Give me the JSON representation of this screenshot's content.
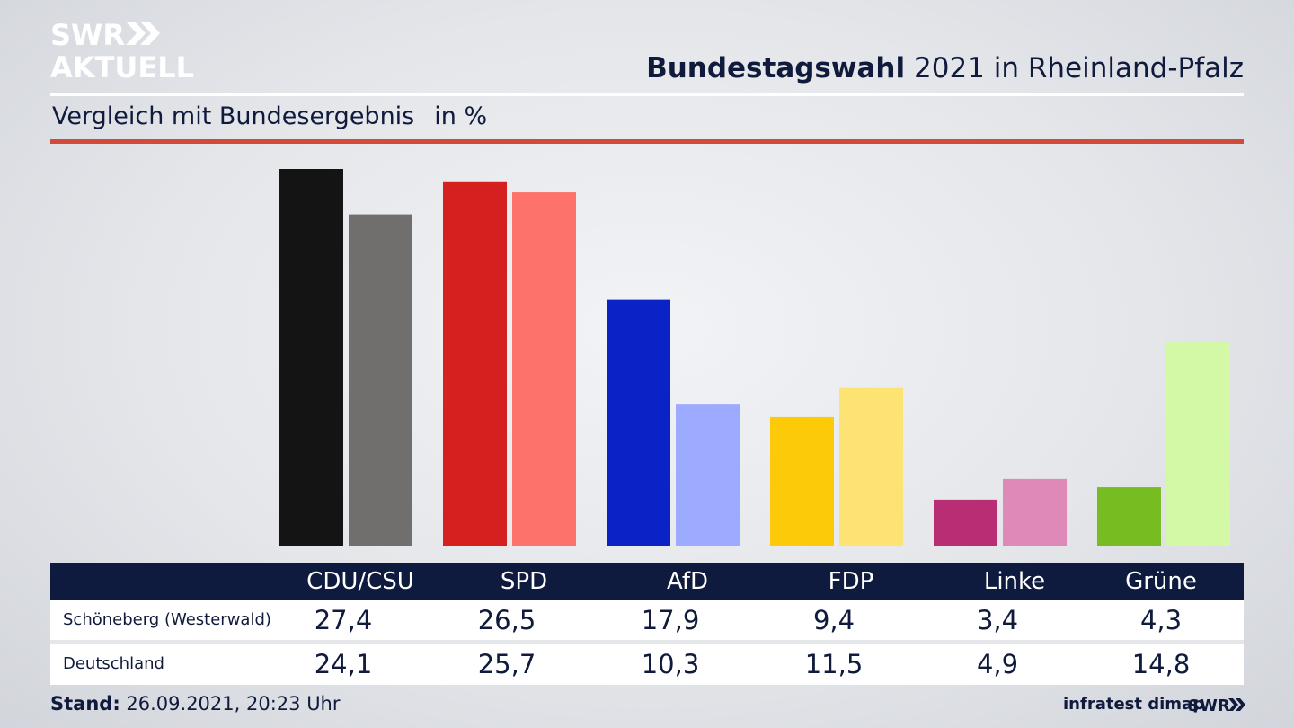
{
  "brand": {
    "logo_line1": "SWR",
    "logo_line2": "AKTUELL",
    "footer_logo": "SWR"
  },
  "header": {
    "title_bold": "Bundestagswahl",
    "title_rest": "2021 in Rheinland-Pfalz",
    "subtitle": "Vergleich mit Bundesergebnis",
    "unit": "in %"
  },
  "colors": {
    "accent_rule": "#d44a3a",
    "table_header": "#0e1a3e",
    "text": "#0f1a3c"
  },
  "chart_data": {
    "type": "bar",
    "categories": [
      "CDU/CSU",
      "SPD",
      "AfD",
      "FDP",
      "Linke",
      "Grüne"
    ],
    "series": [
      {
        "name": "Schöneberg (Westerwald)",
        "values": [
          27.4,
          26.5,
          17.9,
          9.4,
          3.4,
          4.3
        ],
        "colors": [
          "#141414",
          "#d61f1f",
          "#0a22c6",
          "#fdca0a",
          "#b92d74",
          "#76bd22"
        ]
      },
      {
        "name": "Deutschland",
        "values": [
          24.1,
          25.7,
          10.3,
          11.5,
          4.9,
          14.8
        ],
        "colors": [
          "#706f6d",
          "#fd736c",
          "#9cabff",
          "#fde274",
          "#df89b8",
          "#d3f8a6"
        ]
      }
    ],
    "ylim": [
      0,
      27.4
    ],
    "grid": false,
    "legend": "table-below"
  },
  "table": {
    "rows": [
      {
        "label": "Schöneberg (Westerwald)",
        "values": [
          "27,4",
          "26,5",
          "17,9",
          "9,4",
          "3,4",
          "4,3"
        ]
      },
      {
        "label": "Deutschland",
        "values": [
          "24,1",
          "25,7",
          "10,3",
          "11,5",
          "4,9",
          "14,8"
        ]
      }
    ]
  },
  "footer": {
    "stand_label": "Stand:",
    "stand_value": "26.09.2021, 20:23 Uhr",
    "source": "infratest dimap"
  }
}
